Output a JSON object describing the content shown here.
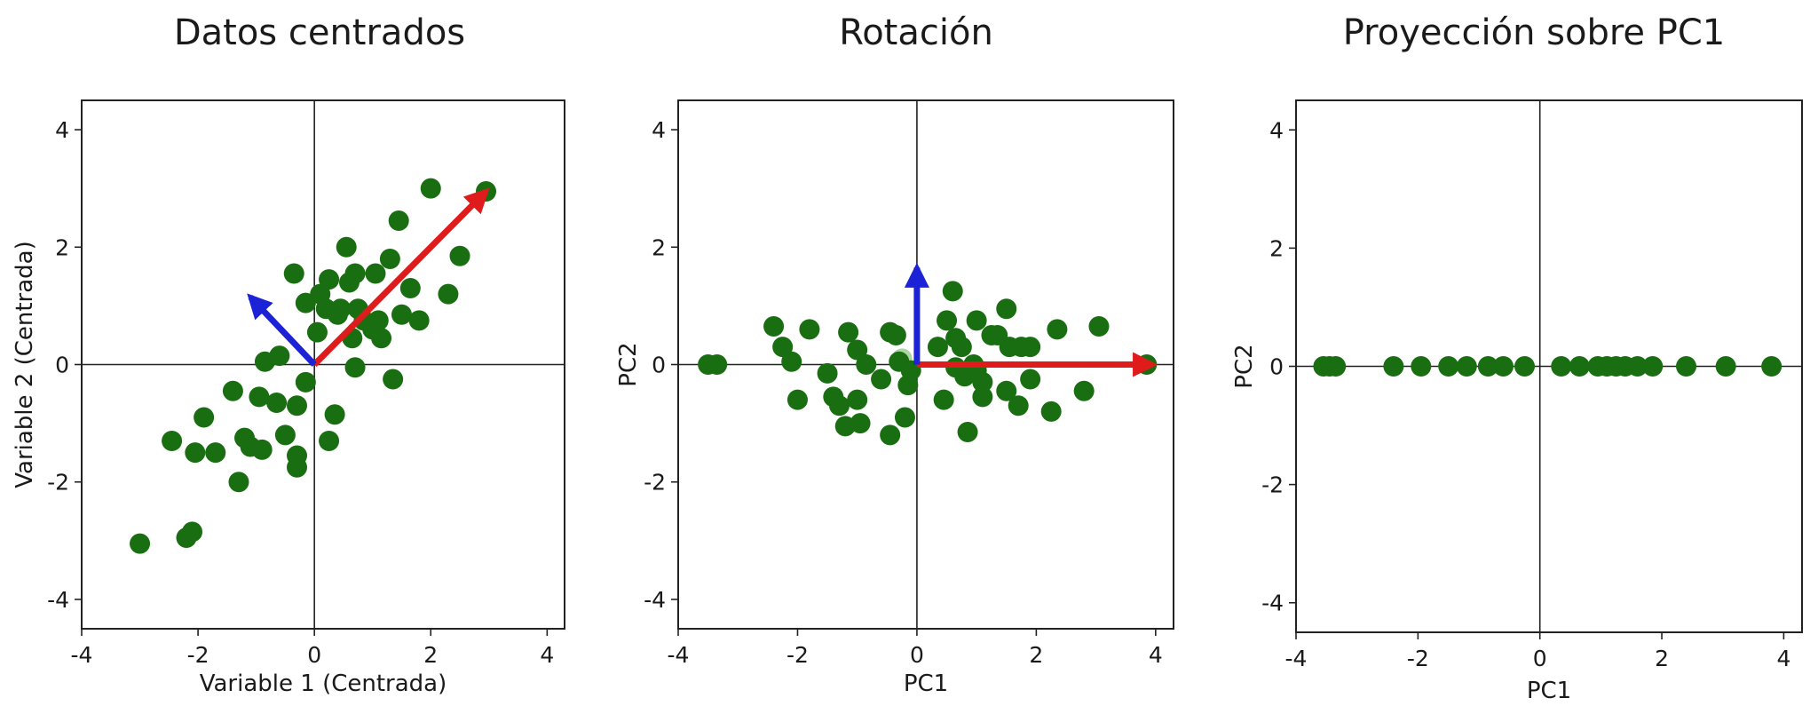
{
  "chart_data": [
    {
      "type": "scatter",
      "title": "Datos centrados",
      "xlabel": "Variable 1 (Centrada)",
      "ylabel": "Variable 2 (Centrada)",
      "xlim": [
        -4.0,
        4.3
      ],
      "ylim": [
        -4.5,
        4.5
      ],
      "xticks": [
        -4,
        -2,
        0,
        2,
        4
      ],
      "yticks": [
        -4,
        -2,
        0,
        2,
        4
      ],
      "grid": false,
      "point_color": "#1a6e12",
      "points": [
        [
          -3.0,
          -3.05
        ],
        [
          -2.2,
          -2.95
        ],
        [
          -2.1,
          -2.85
        ],
        [
          -2.45,
          -1.3
        ],
        [
          -2.05,
          -1.5
        ],
        [
          -1.7,
          -1.5
        ],
        [
          -1.9,
          -0.9
        ],
        [
          -1.4,
          -0.45
        ],
        [
          -1.2,
          -1.25
        ],
        [
          -1.1,
          -1.4
        ],
        [
          -1.3,
          -2.0
        ],
        [
          -0.95,
          -0.55
        ],
        [
          -0.9,
          -1.45
        ],
        [
          -0.65,
          -0.65
        ],
        [
          -0.5,
          -1.2
        ],
        [
          -0.3,
          -1.55
        ],
        [
          -0.3,
          -1.75
        ],
        [
          -0.3,
          -0.7
        ],
        [
          -0.15,
          -0.3
        ],
        [
          -0.85,
          0.05
        ],
        [
          -0.6,
          0.15
        ],
        [
          -0.35,
          1.55
        ],
        [
          -0.15,
          1.05
        ],
        [
          0.05,
          0.55
        ],
        [
          0.2,
          0.95
        ],
        [
          0.25,
          1.45
        ],
        [
          0.25,
          -1.3
        ],
        [
          0.35,
          -0.85
        ],
        [
          0.4,
          0.85
        ],
        [
          0.45,
          0.95
        ],
        [
          0.55,
          2.0
        ],
        [
          0.6,
          1.4
        ],
        [
          0.65,
          0.45
        ],
        [
          0.75,
          0.95
        ],
        [
          0.7,
          1.55
        ],
        [
          0.7,
          -0.05
        ],
        [
          0.85,
          0.75
        ],
        [
          1.0,
          0.6
        ],
        [
          1.1,
          0.75
        ],
        [
          1.15,
          0.45
        ],
        [
          1.05,
          1.55
        ],
        [
          1.3,
          1.8
        ],
        [
          1.45,
          2.45
        ],
        [
          1.35,
          -0.25
        ],
        [
          1.5,
          0.85
        ],
        [
          1.65,
          1.3
        ],
        [
          1.8,
          0.75
        ],
        [
          2.0,
          3.0
        ],
        [
          2.3,
          1.2
        ],
        [
          2.5,
          1.85
        ],
        [
          0.1,
          1.2
        ],
        [
          2.95,
          2.95
        ]
      ],
      "vectors": [
        {
          "color": "#e01b1b",
          "from": [
            0,
            0
          ],
          "to": [
            2.95,
            2.95
          ]
        },
        {
          "color": "#1c22d6",
          "from": [
            0,
            0
          ],
          "to": [
            -1.1,
            1.15
          ]
        }
      ]
    },
    {
      "type": "scatter",
      "title": "Rotación",
      "xlabel": "PC1",
      "ylabel": "PC2",
      "xlim": [
        -4.0,
        4.3
      ],
      "ylim": [
        -4.5,
        4.5
      ],
      "xticks": [
        -4,
        -2,
        0,
        2,
        4
      ],
      "yticks": [
        -4,
        -2,
        0,
        2,
        4
      ],
      "grid": false,
      "point_color": "#1a6e12",
      "points": [
        [
          -3.5,
          0.0
        ],
        [
          -3.35,
          0.0
        ],
        [
          -2.4,
          0.65
        ],
        [
          -2.25,
          0.3
        ],
        [
          -2.1,
          0.05
        ],
        [
          -2.0,
          -0.6
        ],
        [
          -1.8,
          0.6
        ],
        [
          -1.5,
          -0.15
        ],
        [
          -1.4,
          -0.55
        ],
        [
          -1.3,
          -0.7
        ],
        [
          -1.15,
          0.55
        ],
        [
          -1.2,
          -1.05
        ],
        [
          -1.0,
          0.25
        ],
        [
          -1.0,
          -0.6
        ],
        [
          -0.95,
          -1.0
        ],
        [
          -0.85,
          0.0
        ],
        [
          -0.6,
          -0.25
        ],
        [
          -0.45,
          0.55
        ],
        [
          -0.45,
          -1.2
        ],
        [
          -0.35,
          0.5
        ],
        [
          -0.2,
          -0.9
        ],
        [
          -0.15,
          -0.35
        ],
        [
          -0.1,
          -0.1
        ],
        [
          -0.3,
          0.05
        ],
        [
          0.35,
          0.3
        ],
        [
          0.45,
          -0.6
        ],
        [
          0.5,
          0.75
        ],
        [
          0.6,
          1.25
        ],
        [
          0.65,
          0.45
        ],
        [
          0.75,
          0.3
        ],
        [
          0.8,
          -0.2
        ],
        [
          0.85,
          -1.15
        ],
        [
          0.95,
          0.0
        ],
        [
          1.0,
          0.75
        ],
        [
          1.1,
          -0.3
        ],
        [
          1.1,
          -0.55
        ],
        [
          1.25,
          0.5
        ],
        [
          1.35,
          0.5
        ],
        [
          1.5,
          0.95
        ],
        [
          1.5,
          -0.45
        ],
        [
          1.55,
          0.3
        ],
        [
          1.7,
          -0.7
        ],
        [
          1.75,
          0.3
        ],
        [
          1.9,
          0.3
        ],
        [
          1.9,
          -0.25
        ],
        [
          2.25,
          -0.8
        ],
        [
          2.35,
          0.6
        ],
        [
          2.8,
          -0.45
        ],
        [
          3.05,
          0.65
        ],
        [
          3.85,
          0.0
        ],
        [
          0.65,
          -0.05
        ],
        [
          1.0,
          -0.1
        ]
      ],
      "faded_points": [
        [
          -0.25,
          0.1
        ]
      ],
      "vectors": [
        {
          "color": "#e01b1b",
          "from": [
            0,
            0
          ],
          "to": [
            3.95,
            0.0
          ]
        },
        {
          "color": "#1c22d6",
          "from": [
            0,
            0
          ],
          "to": [
            0.0,
            1.65
          ]
        }
      ]
    },
    {
      "type": "scatter",
      "title": "Proyección sobre PC1",
      "xlabel": "PC1",
      "ylabel": "PC2",
      "xlim": [
        -4.0,
        4.3
      ],
      "ylim": [
        -4.5,
        4.5
      ],
      "xticks": [
        -4,
        -2,
        0,
        2,
        4
      ],
      "yticks": [
        -4,
        -2,
        0,
        2,
        4
      ],
      "grid": false,
      "point_color": "#1a6e12",
      "points": [
        [
          -3.55,
          0
        ],
        [
          -3.45,
          0
        ],
        [
          -3.35,
          0
        ],
        [
          -2.4,
          0
        ],
        [
          -1.95,
          0
        ],
        [
          -1.5,
          0
        ],
        [
          -1.2,
          0
        ],
        [
          -0.85,
          0
        ],
        [
          -0.6,
          0
        ],
        [
          -0.25,
          0
        ],
        [
          0.35,
          0
        ],
        [
          0.65,
          0
        ],
        [
          0.95,
          0
        ],
        [
          1.1,
          0
        ],
        [
          1.25,
          0
        ],
        [
          1.4,
          0
        ],
        [
          1.6,
          0
        ],
        [
          1.85,
          0
        ],
        [
          2.4,
          0
        ],
        [
          3.05,
          0
        ],
        [
          3.8,
          0
        ]
      ]
    }
  ]
}
